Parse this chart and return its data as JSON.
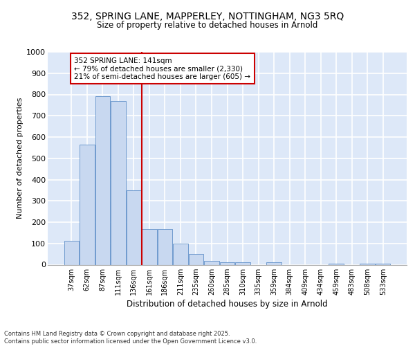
{
  "title1": "352, SPRING LANE, MAPPERLEY, NOTTINGHAM, NG3 5RQ",
  "title2": "Size of property relative to detached houses in Arnold",
  "xlabel": "Distribution of detached houses by size in Arnold",
  "ylabel": "Number of detached properties",
  "categories": [
    "37sqm",
    "62sqm",
    "87sqm",
    "111sqm",
    "136sqm",
    "161sqm",
    "186sqm",
    "211sqm",
    "235sqm",
    "260sqm",
    "285sqm",
    "310sqm",
    "335sqm",
    "359sqm",
    "384sqm",
    "409sqm",
    "434sqm",
    "459sqm",
    "483sqm",
    "508sqm",
    "533sqm"
  ],
  "values": [
    113,
    563,
    793,
    770,
    350,
    168,
    168,
    98,
    52,
    18,
    13,
    12,
    0,
    10,
    0,
    0,
    0,
    5,
    0,
    5,
    6
  ],
  "bar_color": "#c8d8f0",
  "bar_edge_color": "#6090c8",
  "vline_x_idx": 4,
  "vline_color": "#cc0000",
  "annotation_line1": "352 SPRING LANE: 141sqm",
  "annotation_line2": "← 79% of detached houses are smaller (2,330)",
  "annotation_line3": "21% of semi-detached houses are larger (605) →",
  "annotation_box_color": "#cc0000",
  "bg_color": "#dde8f8",
  "grid_color": "#ffffff",
  "footer": "Contains HM Land Registry data © Crown copyright and database right 2025.\nContains public sector information licensed under the Open Government Licence v3.0.",
  "ylim": [
    0,
    1000
  ],
  "yticks": [
    0,
    100,
    200,
    300,
    400,
    500,
    600,
    700,
    800,
    900,
    1000
  ]
}
